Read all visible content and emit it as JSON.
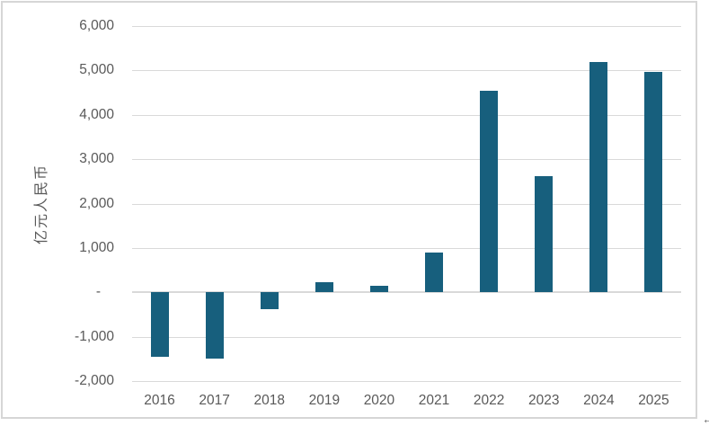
{
  "chart_data": {
    "type": "bar",
    "categories": [
      "2016",
      "2017",
      "2018",
      "2019",
      "2020",
      "2021",
      "2022",
      "2023",
      "2024",
      "2025"
    ],
    "values": [
      -1450,
      -1490,
      -370,
      220,
      150,
      890,
      4550,
      2610,
      5180,
      4970
    ],
    "title": "",
    "xlabel": "",
    "ylabel": "亿元人民币",
    "ylim": [
      -2000,
      6000
    ],
    "ytick_step": 1000,
    "ytick_labels": [
      "6,000",
      "5,000",
      "4,000",
      "3,000",
      "2,000",
      "1,000",
      "-",
      "-1,000",
      "-2,000"
    ],
    "grid": true,
    "legend": "none",
    "bar_color": "#175F7D",
    "gridline_color": "#D9D9D9",
    "text_color": "#595959",
    "frame_border_color": "#D6D6D6"
  },
  "decorations": {
    "corner_glyph": "←"
  }
}
